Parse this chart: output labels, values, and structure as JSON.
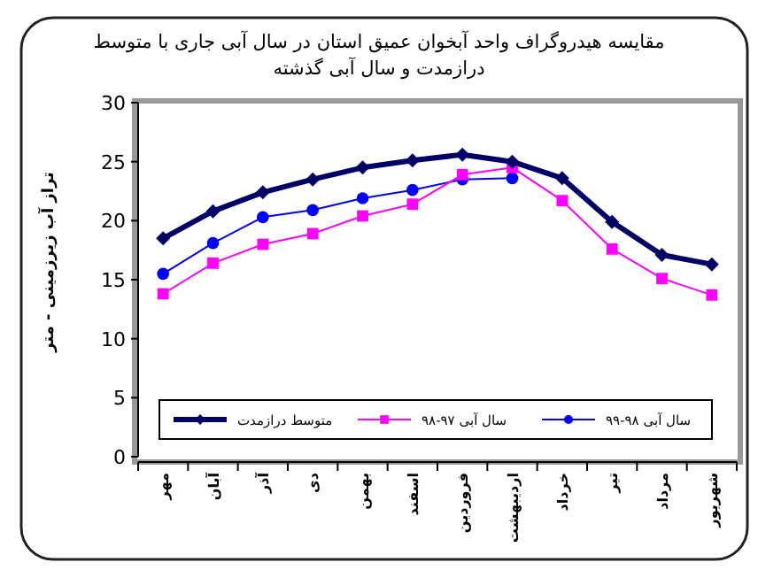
{
  "chart_data": {
    "type": "line",
    "title": "مقایسه هیدروگراف واحد آبخوان عمیق استان در سال آبی جاری با متوسط درازمدت و سال آبی گذشته",
    "ylabel": "تراز آب زیرزمینی - متر",
    "categories": [
      "مهر",
      "آبان",
      "آذر",
      "دی",
      "بهمن",
      "اسفند",
      "فروردین",
      "اردیبهشت",
      "خرداد",
      "تیر",
      "مرداد",
      "شهریور"
    ],
    "ylim": [
      0,
      30
    ],
    "yticks": [
      0,
      5,
      10,
      15,
      20,
      25,
      30
    ],
    "legend": "bottom",
    "series": [
      {
        "name": "متوسط درازمدت",
        "color": "#000066",
        "marker": "diamond",
        "values": [
          18.5,
          20.8,
          22.4,
          23.5,
          24.5,
          25.1,
          25.6,
          25.0,
          23.6,
          19.9,
          17.1,
          16.3
        ]
      },
      {
        "name": "سال آبی ۹۷-۹۸",
        "color": "#ff00ff",
        "marker": "square",
        "values": [
          13.8,
          16.4,
          18.0,
          18.9,
          20.4,
          21.4,
          23.9,
          24.5,
          21.7,
          17.6,
          15.1,
          13.7
        ]
      },
      {
        "name": "سال آبی ۹۸-۹۹",
        "color": "#0000ff",
        "marker": "circle",
        "values": [
          15.5,
          18.1,
          20.3,
          20.9,
          21.9,
          22.6,
          23.5,
          23.6,
          null,
          null,
          null,
          null
        ]
      }
    ]
  }
}
